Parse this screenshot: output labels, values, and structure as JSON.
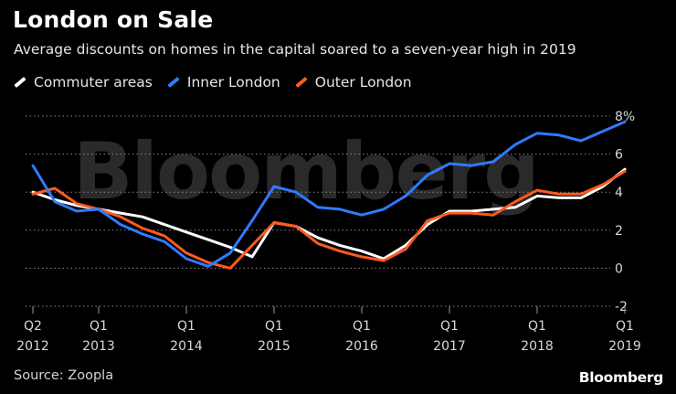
{
  "title": "London on Sale",
  "subtitle": "Average discounts on homes in the capital soared to a seven-year high in 2019",
  "source": "Source: Zoopla",
  "brand": "Bloomberg",
  "watermark": "Bloomberg",
  "chart_data": {
    "type": "line",
    "title": "London on Sale",
    "subtitle": "Average discounts on homes in the capital soared to a seven-year high in 2019",
    "xlabel": "",
    "ylabel": "",
    "x": [
      "2012 Q2",
      "2012 Q3",
      "2012 Q4",
      "2013 Q1",
      "2013 Q2",
      "2013 Q3",
      "2013 Q4",
      "2014 Q1",
      "2014 Q2",
      "2014 Q3",
      "2014 Q4",
      "2015 Q1",
      "2015 Q2",
      "2015 Q3",
      "2015 Q4",
      "2016 Q1",
      "2016 Q2",
      "2016 Q3",
      "2016 Q4",
      "2017 Q1",
      "2017 Q2",
      "2017 Q3",
      "2017 Q4",
      "2018 Q1",
      "2018 Q2",
      "2018 Q3",
      "2018 Q4",
      "2019 Q1"
    ],
    "series": [
      {
        "name": "Commuter areas",
        "color": "#ffffff",
        "values": [
          4.0,
          3.6,
          3.3,
          3.1,
          2.9,
          2.7,
          2.3,
          1.9,
          1.5,
          1.1,
          0.6,
          2.4,
          2.2,
          1.6,
          1.2,
          0.9,
          0.5,
          1.2,
          2.3,
          3.0,
          3.0,
          3.1,
          3.2,
          3.8,
          3.7,
          3.7,
          4.3,
          5.2
        ]
      },
      {
        "name": "Inner London",
        "color": "#2f7bff",
        "values": [
          5.4,
          3.5,
          3.0,
          3.1,
          2.3,
          1.8,
          1.4,
          0.5,
          0.1,
          0.8,
          2.5,
          4.3,
          4.0,
          3.2,
          3.1,
          2.8,
          3.1,
          3.8,
          4.9,
          5.5,
          5.4,
          5.6,
          6.5,
          7.1,
          7.0,
          6.7,
          7.2,
          7.7
        ]
      },
      {
        "name": "Outer London",
        "color": "#ff5a1f",
        "values": [
          3.9,
          4.2,
          3.4,
          3.1,
          2.7,
          2.1,
          1.7,
          0.8,
          0.3,
          0.0,
          1.2,
          2.4,
          2.2,
          1.3,
          0.9,
          0.6,
          0.4,
          1.0,
          2.5,
          2.9,
          2.9,
          2.8,
          3.5,
          4.1,
          3.9,
          3.9,
          4.4,
          5.1
        ]
      }
    ],
    "ylim": [
      -2,
      8
    ],
    "y_ticks": [
      "-2",
      "0",
      "2",
      "4",
      "6",
      "8%"
    ],
    "x_tick_labels": [
      {
        "q": "Q2",
        "year": "2012",
        "index": 0
      },
      {
        "q": "Q1",
        "year": "2013",
        "index": 3
      },
      {
        "q": "Q1",
        "year": "2014",
        "index": 7
      },
      {
        "q": "Q1",
        "year": "2015",
        "index": 11
      },
      {
        "q": "Q1",
        "year": "2016",
        "index": 15
      },
      {
        "q": "Q1",
        "year": "2017",
        "index": 19
      },
      {
        "q": "Q1",
        "year": "2018",
        "index": 23
      },
      {
        "q": "Q1",
        "year": "2019",
        "index": 27
      }
    ],
    "grid": "horizontal dotted",
    "legend": "top-left",
    "y_axis_side": "right"
  }
}
